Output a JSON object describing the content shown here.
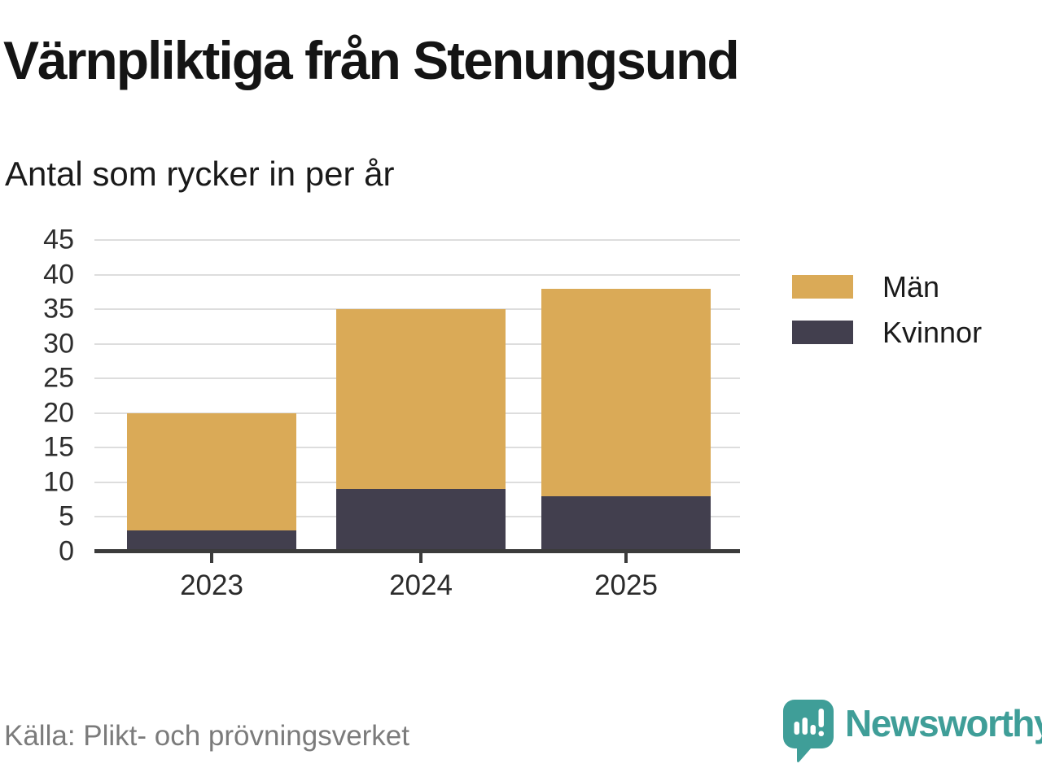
{
  "header": {
    "title": "Värnpliktiga från Stenungsund",
    "subtitle": "Antal som rycker in per år"
  },
  "chart_data": {
    "type": "bar",
    "stacked": true,
    "title": "Värnpliktiga från Stenungsund",
    "subtitle": "Antal som rycker in per år",
    "categories": [
      "2023",
      "2024",
      "2025"
    ],
    "series": [
      {
        "name": "Män",
        "color": "#DAAA57",
        "values": [
          17,
          26,
          30
        ]
      },
      {
        "name": "Kvinnor",
        "color": "#423F4E",
        "values": [
          3,
          9,
          8
        ]
      }
    ],
    "totals": [
      20,
      35,
      38
    ],
    "xlabel": "",
    "ylabel": "",
    "ylim": [
      0,
      45
    ],
    "yticks": [
      0,
      5,
      10,
      15,
      20,
      25,
      30,
      35,
      40,
      45
    ],
    "grid": "horizontal",
    "legend_position": "right"
  },
  "footer": {
    "source": "Källa: Plikt- och prövningsverket",
    "brand": "Newsworthy"
  },
  "colors": {
    "men_gold": "#DAAA57",
    "women_dark": "#423F4E",
    "brand_teal": "#3F9E98",
    "gridline": "#DDDDDD",
    "axis": "#3B3B3B",
    "source_text": "#7B7B7B"
  },
  "icons": {
    "brand_icon": "bar-chart-speech-bubble-icon"
  }
}
